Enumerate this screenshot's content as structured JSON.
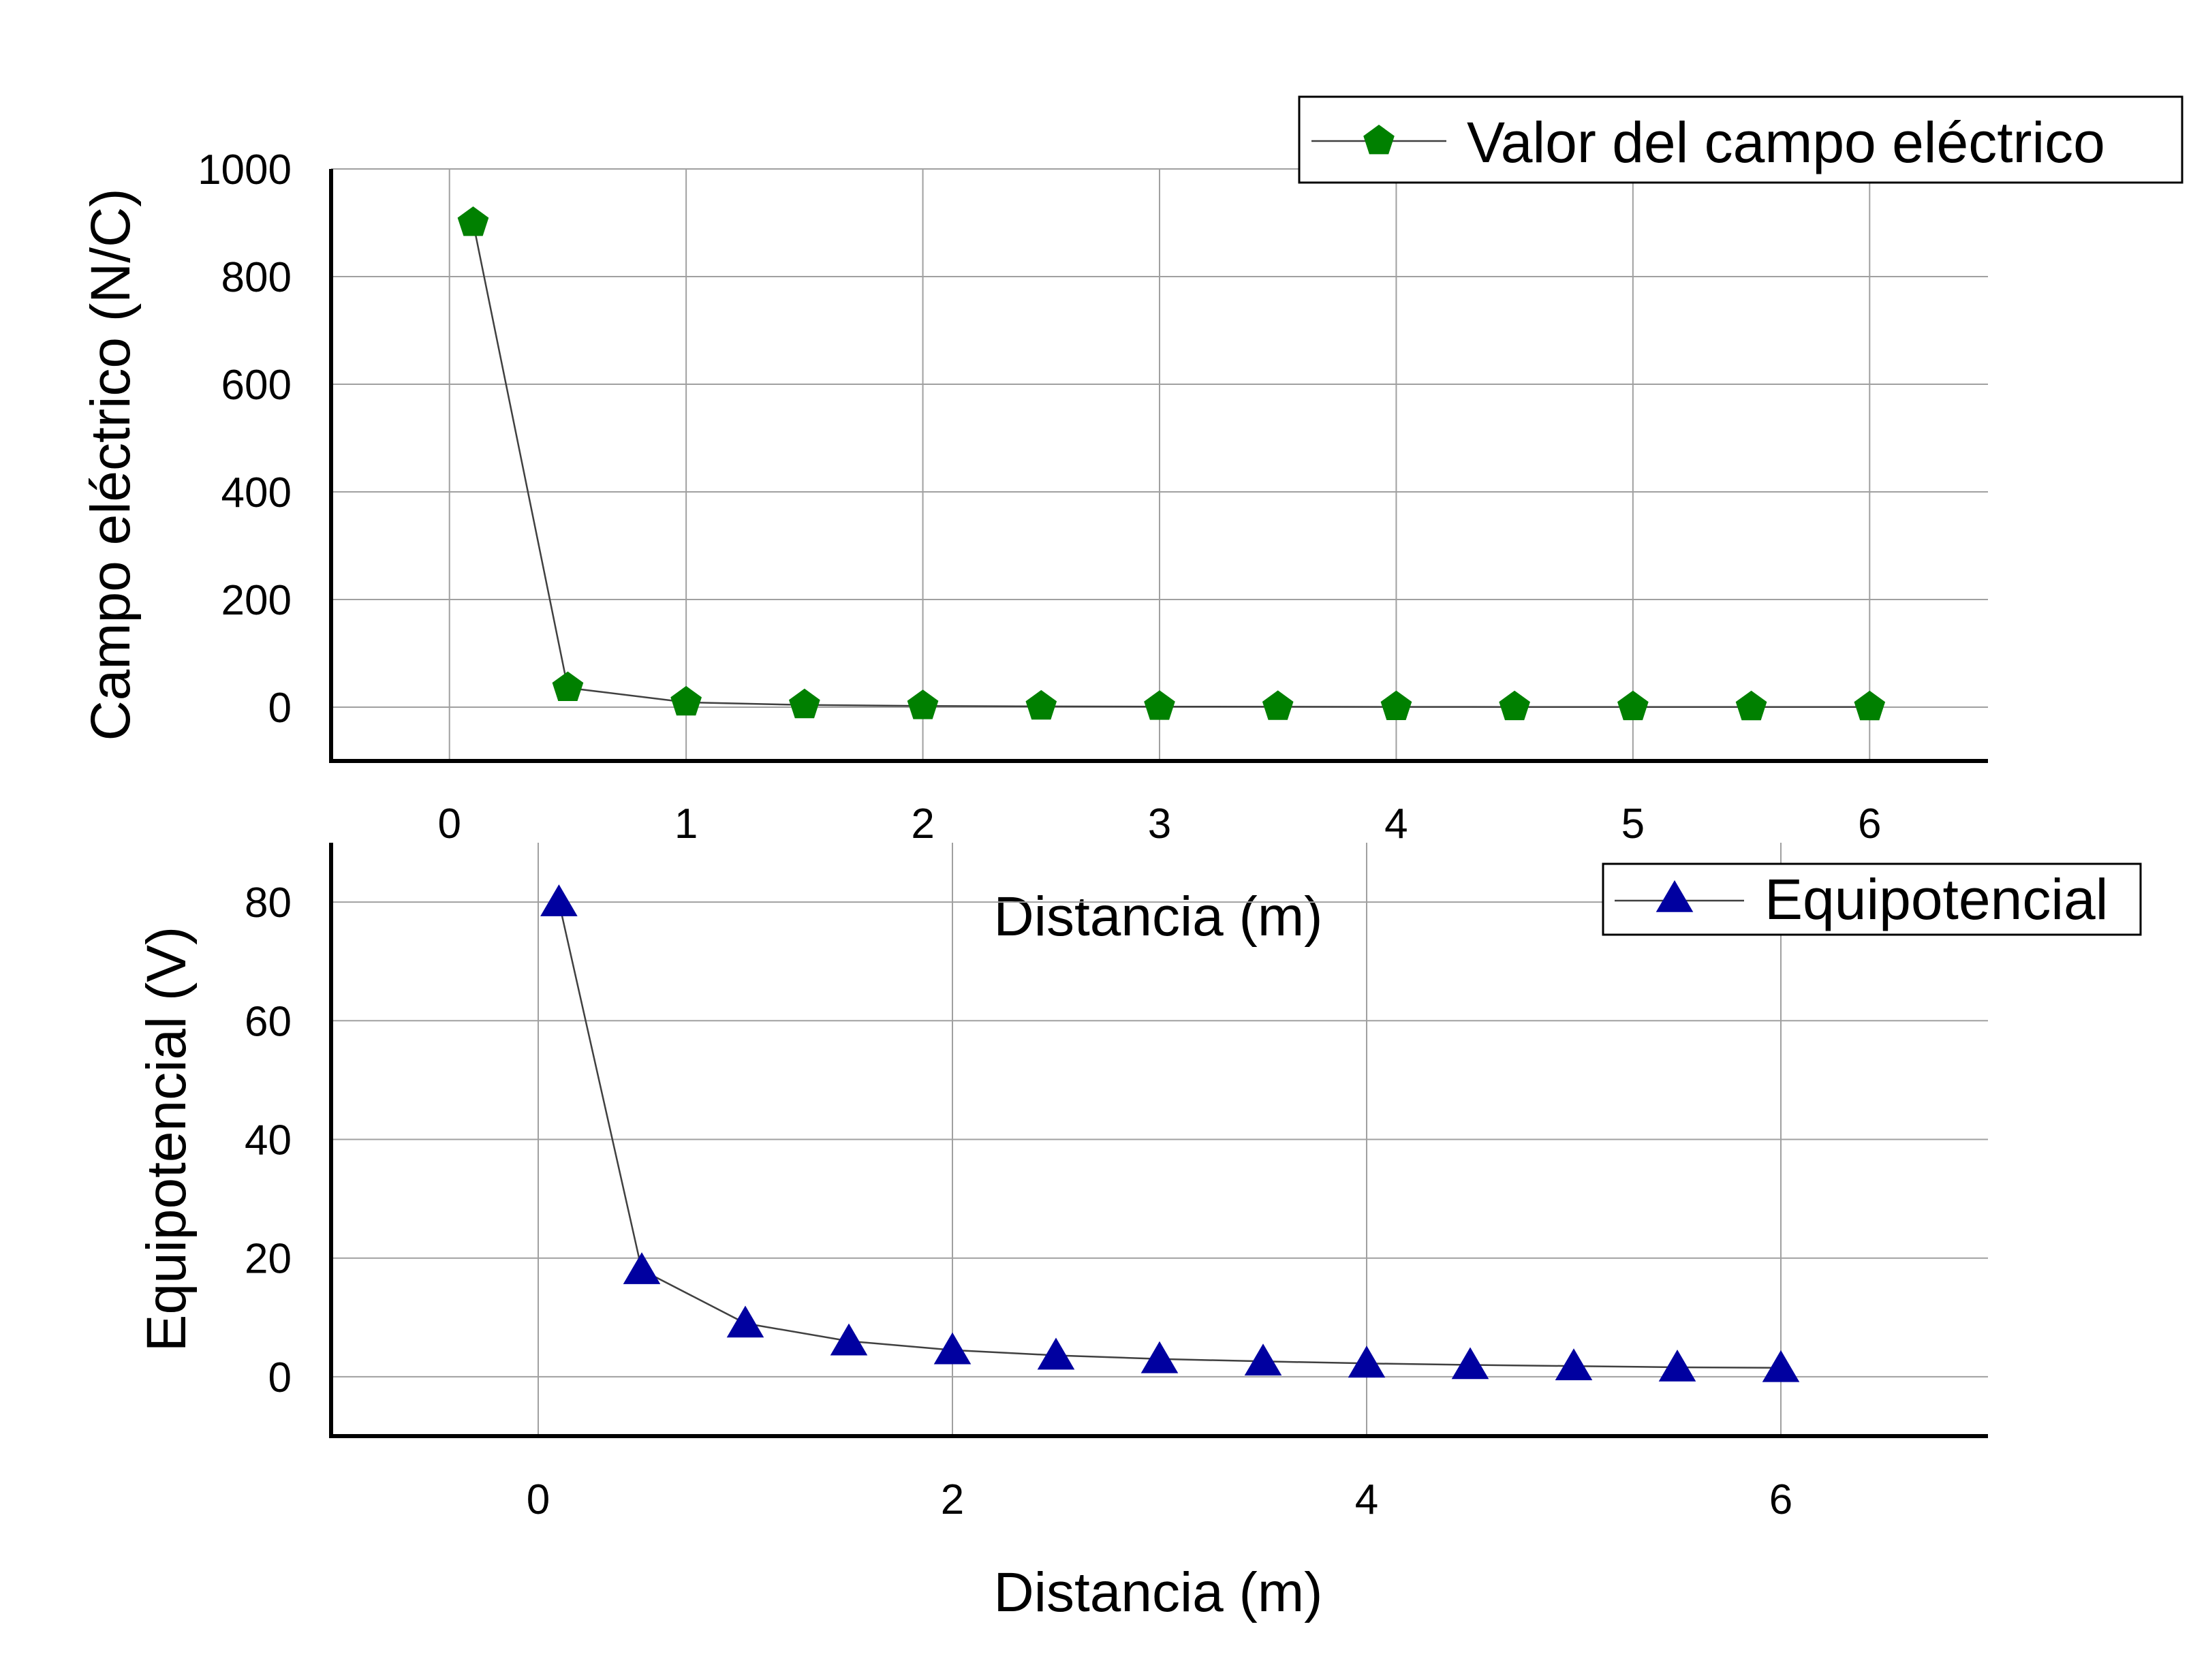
{
  "chart_data": [
    {
      "type": "line",
      "x": [
        0.1,
        0.5,
        1,
        1.5,
        2,
        2.5,
        3,
        3.5,
        4,
        4.5,
        5,
        5.5,
        6
      ],
      "series": [
        {
          "name": "Valor del campo eléctrico",
          "values": [
            900,
            36,
            9,
            4,
            2.25,
            1.44,
            1,
            0.73,
            0.56,
            0.44,
            0.36,
            0.3,
            0.25
          ],
          "color": "#008000",
          "marker": "pentagon"
        }
      ],
      "title": "",
      "xlabel": "Distancia (m)",
      "ylabel": "Campo eléctrico (N/C)",
      "xlim": [
        -0.5,
        6.5
      ],
      "ylim": [
        -100,
        1000
      ],
      "xticks": [
        "0",
        "1",
        "2",
        "3",
        "4",
        "5",
        "6"
      ],
      "yticks": [
        "0",
        "200",
        "400",
        "600",
        "800",
        "1000"
      ],
      "grid": true,
      "legend_position": "top-right"
    },
    {
      "type": "line",
      "x": [
        0.1,
        0.5,
        1,
        1.5,
        2,
        2.5,
        3,
        3.5,
        4,
        4.5,
        5,
        5.5,
        6
      ],
      "series": [
        {
          "name": "Equipotencial",
          "values": [
            80,
            18,
            9,
            6,
            4.5,
            3.6,
            3,
            2.6,
            2.25,
            2,
            1.8,
            1.6,
            1.5
          ],
          "color": "#0000a0",
          "marker": "triangle"
        }
      ],
      "title": "",
      "xlabel": "Distancia (m)",
      "ylabel": "Equipotencial (V)",
      "xlim": [
        -1,
        7
      ],
      "ylim": [
        -10,
        90
      ],
      "xticks": [
        "0",
        "2",
        "4",
        "6"
      ],
      "yticks": [
        "0",
        "20",
        "40",
        "60",
        "80"
      ],
      "grid": true,
      "legend_position": "top-right"
    }
  ]
}
